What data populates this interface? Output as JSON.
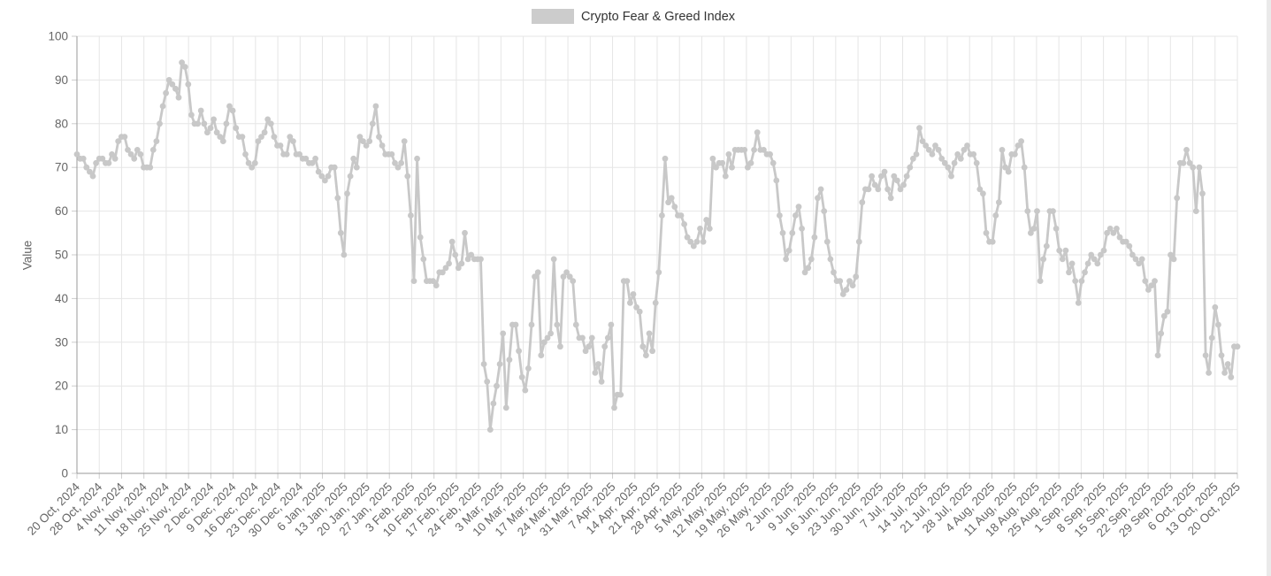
{
  "legend": {
    "label": "Crypto Fear & Greed Index"
  },
  "chart_data": {
    "type": "line",
    "title": "Crypto Fear & Greed Index",
    "series_name": "Crypto Fear & Greed Index",
    "xlabel": "",
    "ylabel": "Value",
    "ylim": [
      0,
      100
    ],
    "y_ticks": [
      0,
      10,
      20,
      30,
      40,
      50,
      60,
      70,
      80,
      90,
      100
    ],
    "grid": true,
    "legend_position": "top-center",
    "marker": "circle",
    "frequency": "daily",
    "x_start": "20 Oct, 2024",
    "x_end": "20 Oct, 2025",
    "x_tick_labels": [
      "20 Oct, 2024",
      "28 Oct, 2024",
      "4 Nov, 2024",
      "11 Nov, 2024",
      "18 Nov, 2024",
      "25 Nov, 2024",
      "2 Dec, 2024",
      "9 Dec, 2024",
      "16 Dec, 2024",
      "23 Dec, 2024",
      "30 Dec, 2024",
      "6 Jan, 2025",
      "13 Jan, 2025",
      "20 Jan, 2025",
      "27 Jan, 2025",
      "3 Feb, 2025",
      "10 Feb, 2025",
      "17 Feb, 2025",
      "24 Feb, 2025",
      "3 Mar, 2025",
      "10 Mar, 2025",
      "17 Mar, 2025",
      "24 Mar, 2025",
      "31 Mar, 2025",
      "7 Apr, 2025",
      "14 Apr, 2025",
      "21 Apr, 2025",
      "28 Apr, 2025",
      "5 May, 2025",
      "12 May, 2025",
      "19 May, 2025",
      "26 May, 2025",
      "2 Jun, 2025",
      "9 Jun, 2025",
      "16 Jun, 2025",
      "23 Jun, 2025",
      "30 Jun, 2025",
      "7 Jul, 2025",
      "14 Jul, 2025",
      "21 Jul, 2025",
      "28 Jul, 2025",
      "4 Aug, 2025",
      "11 Aug, 2025",
      "18 Aug, 2025",
      "25 Aug, 2025",
      "1 Sep, 2025",
      "8 Sep, 2025",
      "15 Sep, 2025",
      "22 Sep, 2025",
      "29 Sep, 2025",
      "6 Oct, 2025",
      "13 Oct, 2025",
      "20 Oct, 2025"
    ],
    "values": [
      73,
      72,
      72,
      70,
      69,
      68,
      71,
      72,
      72,
      71,
      71,
      73,
      72,
      76,
      77,
      77,
      74,
      73,
      72,
      74,
      73,
      70,
      70,
      70,
      74,
      76,
      80,
      84,
      87,
      90,
      89,
      88,
      86,
      94,
      93,
      89,
      82,
      80,
      80,
      83,
      80,
      78,
      79,
      81,
      78,
      77,
      76,
      80,
      84,
      83,
      79,
      77,
      77,
      73,
      71,
      70,
      71,
      76,
      77,
      78,
      81,
      80,
      77,
      75,
      75,
      73,
      73,
      77,
      76,
      73,
      73,
      72,
      72,
      71,
      71,
      72,
      69,
      68,
      67,
      68,
      70,
      70,
      63,
      55,
      50,
      64,
      68,
      72,
      70,
      77,
      76,
      75,
      76,
      80,
      84,
      77,
      75,
      73,
      73,
      73,
      71,
      70,
      71,
      76,
      68,
      59,
      44,
      72,
      54,
      49,
      44,
      44,
      44,
      43,
      46,
      46,
      47,
      48,
      53,
      50,
      47,
      48,
      55,
      49,
      50,
      49,
      49,
      49,
      25,
      21,
      10,
      16,
      20,
      25,
      32,
      15,
      26,
      34,
      34,
      28,
      22,
      19,
      24,
      34,
      45,
      46,
      27,
      30,
      31,
      32,
      49,
      34,
      29,
      45,
      46,
      45,
      44,
      34,
      31,
      31,
      28,
      29,
      31,
      23,
      25,
      21,
      29,
      31,
      34,
      15,
      18,
      18,
      44,
      44,
      39,
      41,
      38,
      37,
      29,
      27,
      32,
      28,
      39,
      46,
      59,
      72,
      62,
      63,
      61,
      59,
      59,
      57,
      54,
      53,
      52,
      53,
      56,
      53,
      58,
      56,
      72,
      70,
      71,
      71,
      68,
      73,
      70,
      74,
      74,
      74,
      74,
      70,
      71,
      74,
      78,
      74,
      74,
      73,
      73,
      71,
      67,
      59,
      55,
      49,
      51,
      55,
      59,
      61,
      56,
      46,
      47,
      49,
      54,
      63,
      65,
      60,
      53,
      49,
      46,
      44,
      44,
      41,
      42,
      44,
      43,
      45,
      53,
      62,
      65,
      65,
      68,
      66,
      65,
      68,
      69,
      65,
      63,
      68,
      67,
      65,
      66,
      68,
      70,
      72,
      73,
      79,
      76,
      75,
      74,
      73,
      75,
      74,
      72,
      71,
      70,
      68,
      71,
      73,
      72,
      74,
      75,
      73,
      73,
      71,
      65,
      64,
      55,
      53,
      53,
      59,
      62,
      74,
      70,
      69,
      73,
      73,
      75,
      76,
      70,
      60,
      55,
      56,
      60,
      44,
      49,
      52,
      60,
      60,
      56,
      51,
      49,
      51,
      46,
      48,
      44,
      39,
      44,
      46,
      48,
      50,
      49,
      48,
      50,
      51,
      55,
      56,
      55,
      56,
      54,
      53,
      53,
      52,
      50,
      49,
      48,
      49,
      44,
      42,
      43,
      44,
      27,
      32,
      36,
      37,
      50,
      49,
      63,
      71,
      71,
      74,
      71,
      70,
      60,
      70,
      64,
      27,
      23,
      31,
      38,
      34,
      27,
      23,
      25,
      22,
      29,
      29
    ],
    "colors": {
      "series": "#c8c8c8",
      "legend_swatch": "#cccccc",
      "grid": "#e6e6e6",
      "axis": "#999999",
      "tick": "#cccccc",
      "label": "#666666",
      "legend_text": "#333333",
      "scrollbar": "#eaeaea"
    }
  }
}
